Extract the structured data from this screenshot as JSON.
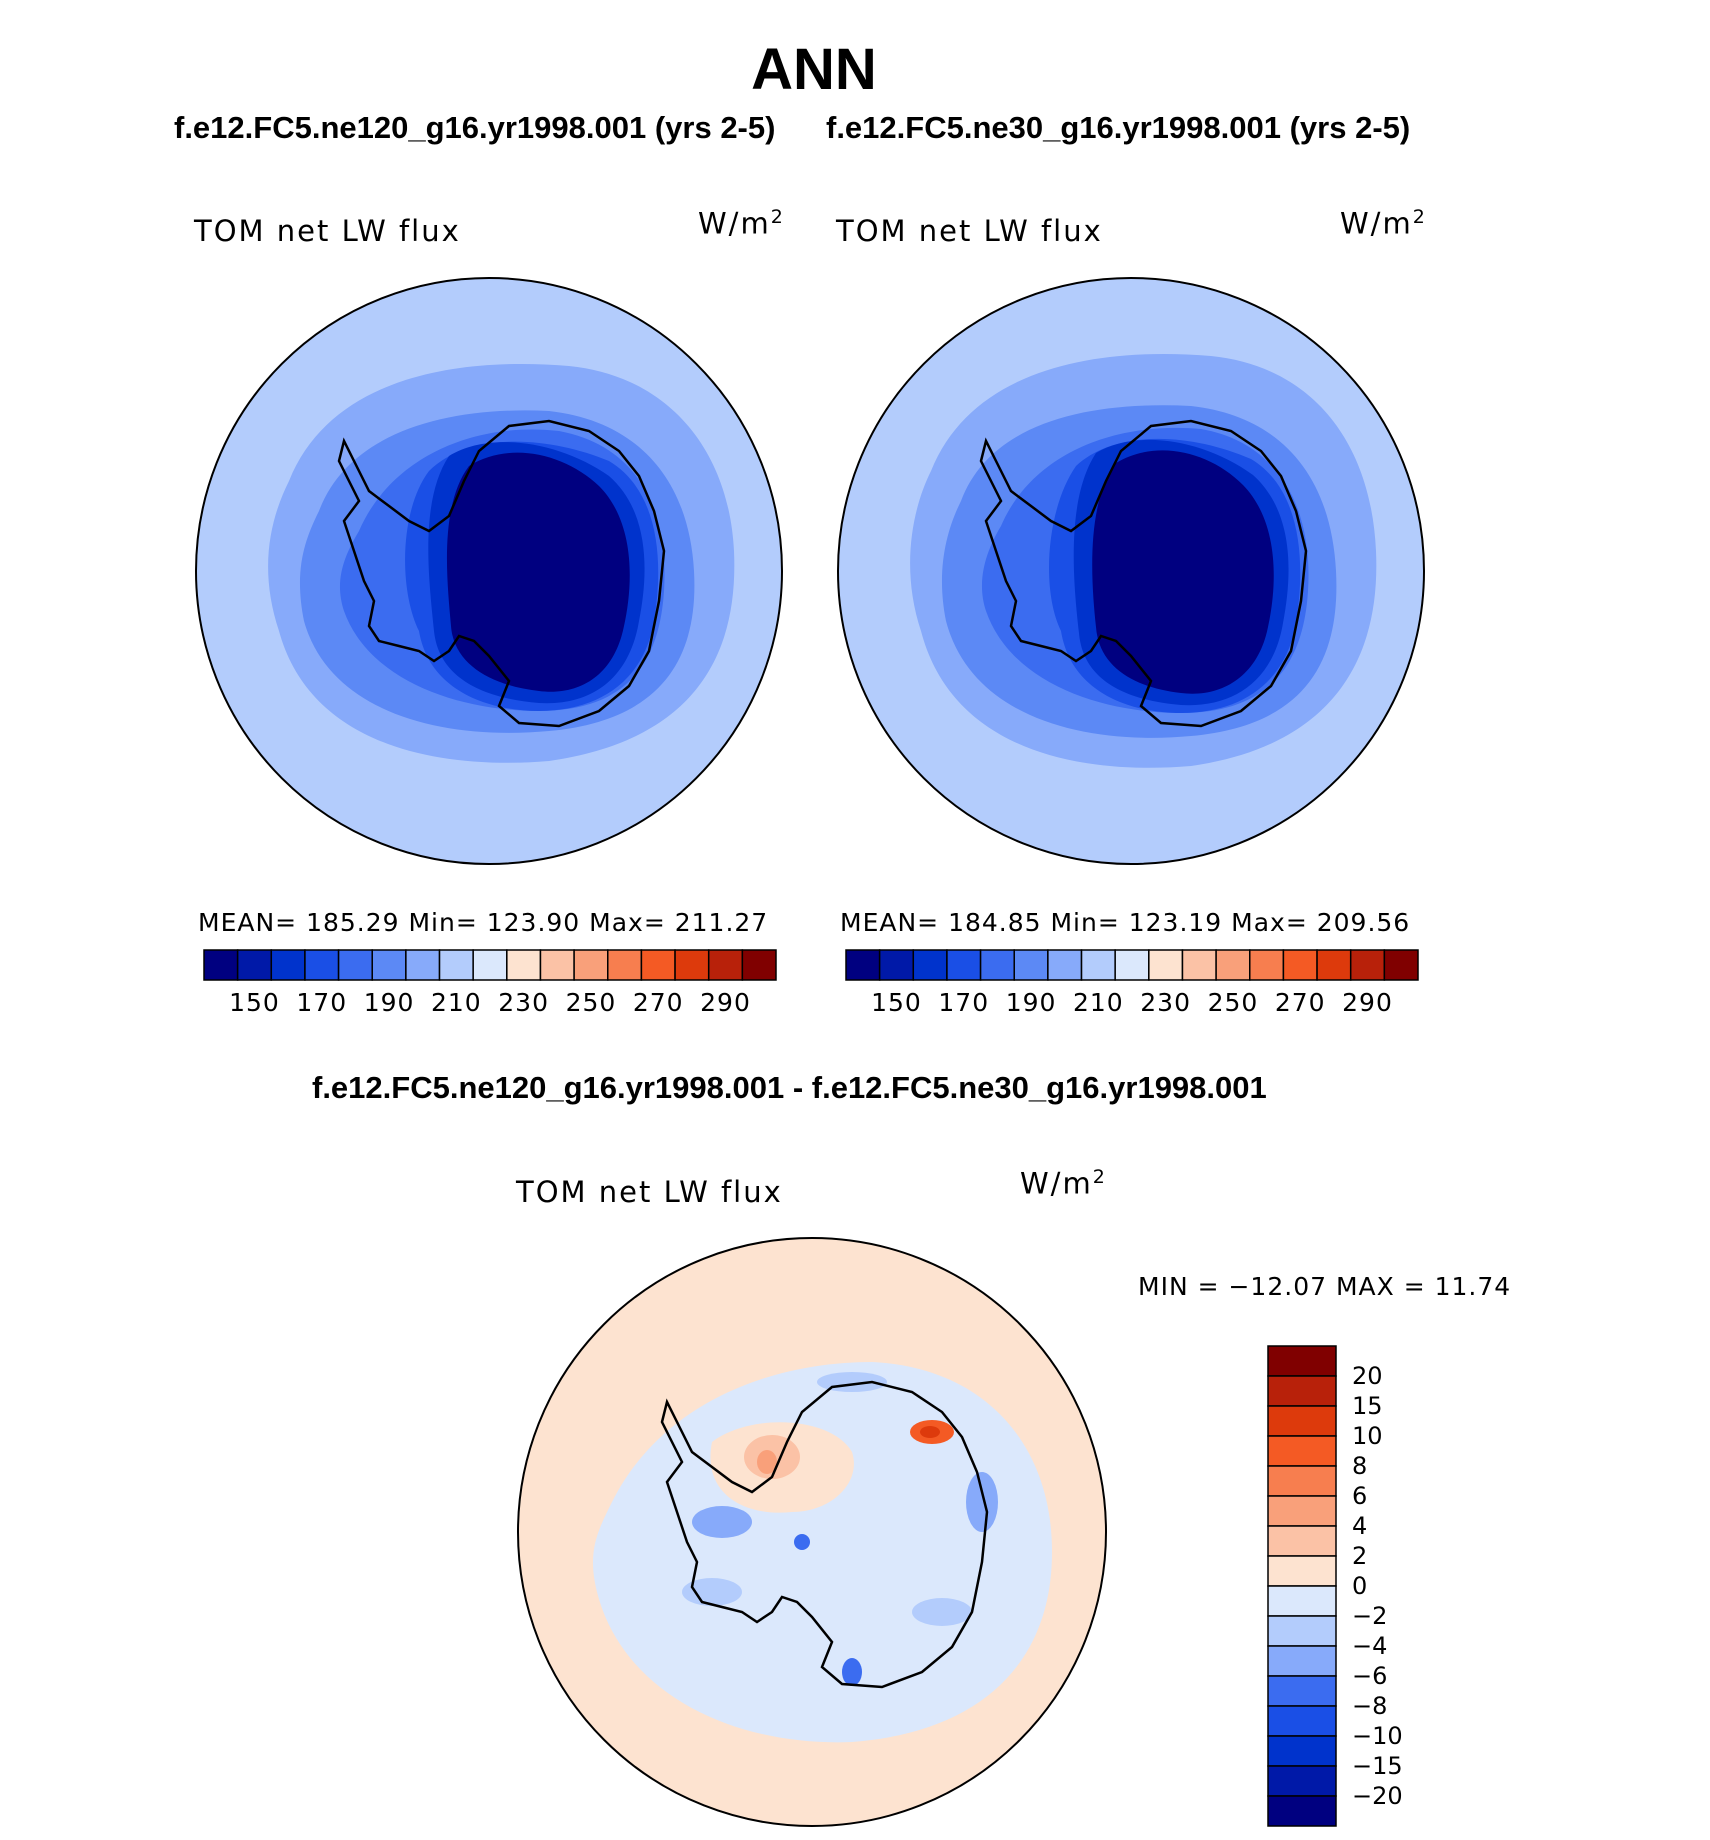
{
  "figure": {
    "title": "ANN",
    "subtitle_left": "f.e12.FC5.ne120_g16.yr1998.001 (yrs 2-5)",
    "subtitle_right": "f.e12.FC5.ne30_g16.yr1998.001 (yrs 2-5)",
    "diff_title": "f.e12.FC5.ne120_g16.yr1998.001 - f.e12.FC5.ne30_g16.yr1998.001"
  },
  "panels": [
    {
      "label": "TOM net LW flux",
      "units": "W/m",
      "units_exp": "2",
      "stats": "MEAN= 185.29   Min= 123.90   Max= 211.27"
    },
    {
      "label": "TOM net LW flux",
      "units": "W/m",
      "units_exp": "2",
      "stats": "MEAN= 184.85   Min= 123.19   Max= 209.56"
    }
  ],
  "diff_panel": {
    "label": "TOM net LW flux",
    "units": "W/m",
    "units_exp": "2",
    "stats": "MIN = −12.07 MAX =   11.74"
  },
  "colorbars": {
    "abs_colors": [
      "#000080",
      "#0019a8",
      "#0033cc",
      "#1a4fe6",
      "#3b6cf0",
      "#5c89f5",
      "#87aafa",
      "#b3ccfc",
      "#dbe8fc",
      "#fde3d0",
      "#fbc2a6",
      "#f9a07a",
      "#f77e4f",
      "#f45a24",
      "#dd3a0c",
      "#b8210a",
      "#800000"
    ],
    "abs_ticks": [
      "150",
      "170",
      "190",
      "210",
      "230",
      "250",
      "270",
      "290"
    ],
    "diff_colors": [
      "#000080",
      "#0019a8",
      "#0033cc",
      "#1a4fe6",
      "#3b6cf0",
      "#87aafa",
      "#b3ccfc",
      "#dbe8fc",
      "#fde3d0",
      "#fbc2a6",
      "#f9a07a",
      "#f77e4f",
      "#f45a24",
      "#dd3a0c",
      "#b8210a",
      "#800000"
    ],
    "diff_ticks": [
      "−20",
      "−15",
      "−10",
      "−8",
      "−6",
      "−4",
      "−2",
      "0",
      "2",
      "4",
      "6",
      "8",
      "10",
      "15",
      "20"
    ]
  }
}
